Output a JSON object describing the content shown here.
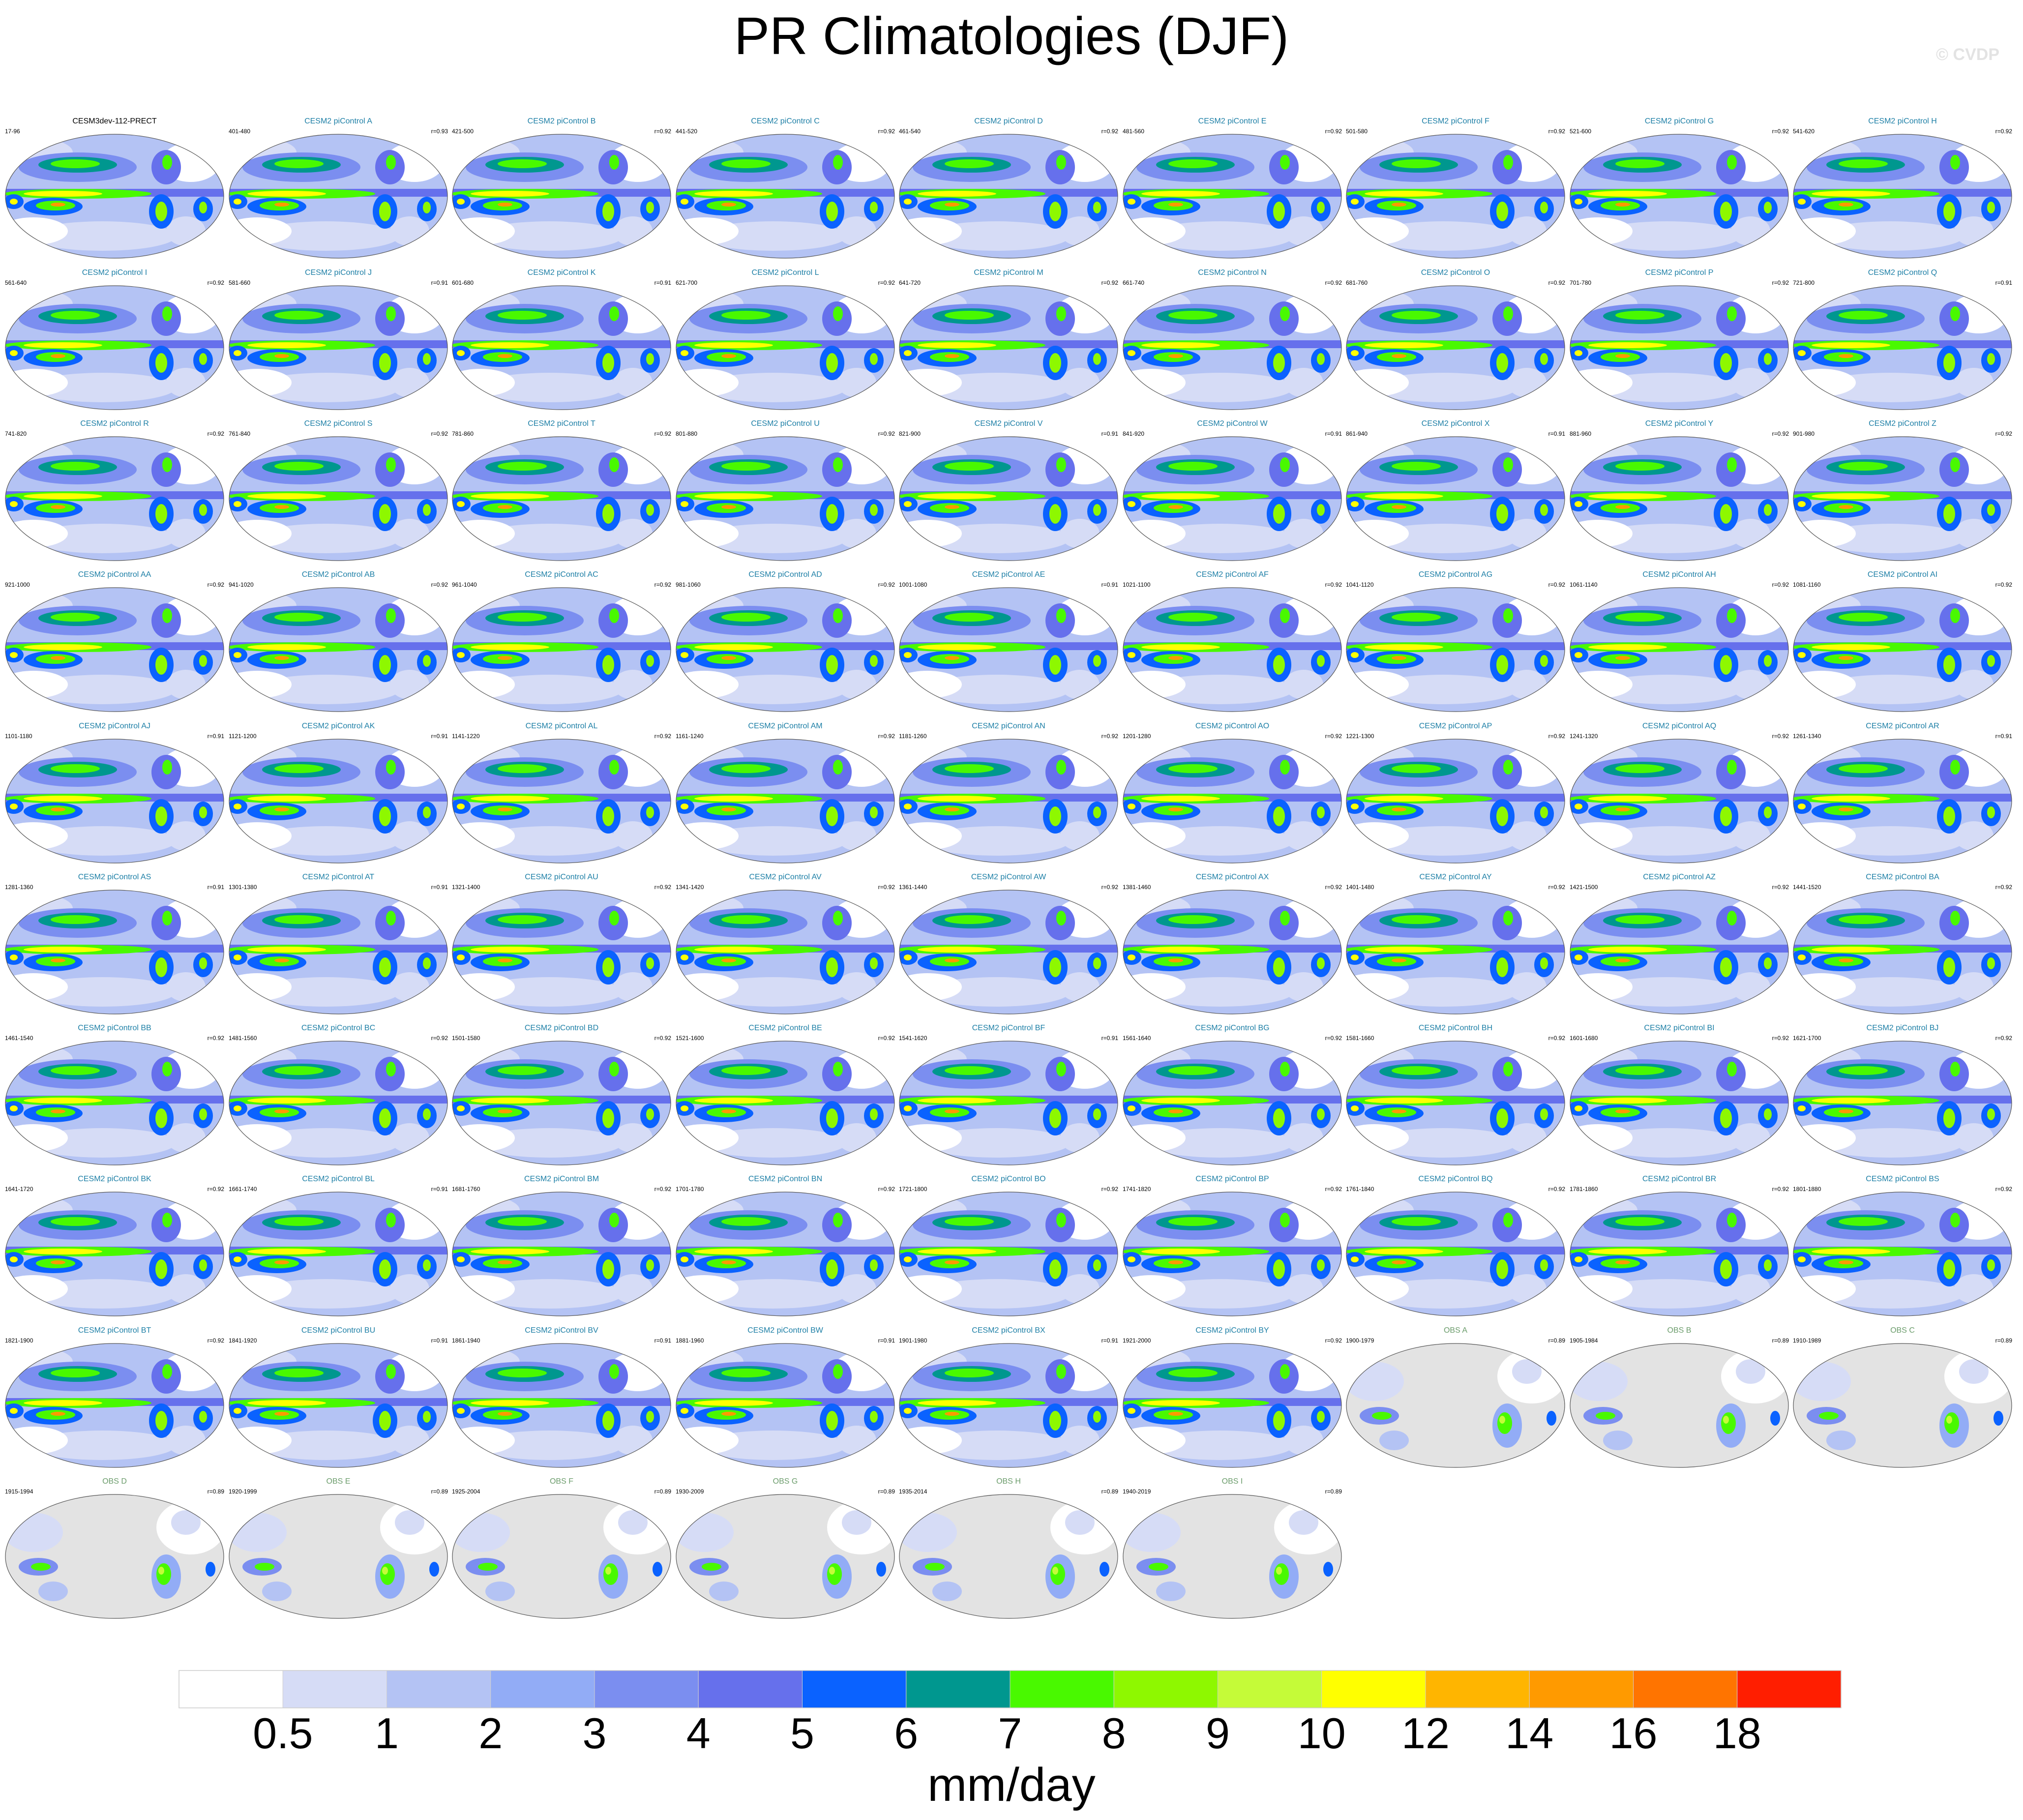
{
  "title": "PR Climatologies (DJF)",
  "copyright": "© CVDP",
  "panels": [
    {
      "name": "CESM3dev-112-PRECT",
      "years": "17-96",
      "corr": "",
      "kind": "base"
    },
    {
      "name": "CESM2 piControl A",
      "years": "401-480",
      "corr": "r=0.93",
      "kind": "model"
    },
    {
      "name": "CESM2 piControl B",
      "years": "421-500",
      "corr": "r=0.92",
      "kind": "model"
    },
    {
      "name": "CESM2 piControl C",
      "years": "441-520",
      "corr": "r=0.92",
      "kind": "model"
    },
    {
      "name": "CESM2 piControl D",
      "years": "461-540",
      "corr": "r=0.92",
      "kind": "model"
    },
    {
      "name": "CESM2 piControl E",
      "years": "481-560",
      "corr": "r=0.92",
      "kind": "model"
    },
    {
      "name": "CESM2 piControl F",
      "years": "501-580",
      "corr": "r=0.92",
      "kind": "model"
    },
    {
      "name": "CESM2 piControl G",
      "years": "521-600",
      "corr": "r=0.92",
      "kind": "model"
    },
    {
      "name": "CESM2 piControl H",
      "years": "541-620",
      "corr": "r=0.92",
      "kind": "model"
    },
    {
      "name": "CESM2 piControl I",
      "years": "561-640",
      "corr": "r=0.92",
      "kind": "model"
    },
    {
      "name": "CESM2 piControl J",
      "years": "581-660",
      "corr": "r=0.91",
      "kind": "model"
    },
    {
      "name": "CESM2 piControl K",
      "years": "601-680",
      "corr": "r=0.91",
      "kind": "model"
    },
    {
      "name": "CESM2 piControl L",
      "years": "621-700",
      "corr": "r=0.92",
      "kind": "model"
    },
    {
      "name": "CESM2 piControl M",
      "years": "641-720",
      "corr": "r=0.92",
      "kind": "model"
    },
    {
      "name": "CESM2 piControl N",
      "years": "661-740",
      "corr": "r=0.92",
      "kind": "model"
    },
    {
      "name": "CESM2 piControl O",
      "years": "681-760",
      "corr": "r=0.92",
      "kind": "model"
    },
    {
      "name": "CESM2 piControl P",
      "years": "701-780",
      "corr": "r=0.92",
      "kind": "model"
    },
    {
      "name": "CESM2 piControl Q",
      "years": "721-800",
      "corr": "r=0.91",
      "kind": "model"
    },
    {
      "name": "CESM2 piControl R",
      "years": "741-820",
      "corr": "r=0.92",
      "kind": "model"
    },
    {
      "name": "CESM2 piControl S",
      "years": "761-840",
      "corr": "r=0.92",
      "kind": "model"
    },
    {
      "name": "CESM2 piControl T",
      "years": "781-860",
      "corr": "r=0.92",
      "kind": "model"
    },
    {
      "name": "CESM2 piControl U",
      "years": "801-880",
      "corr": "r=0.92",
      "kind": "model"
    },
    {
      "name": "CESM2 piControl V",
      "years": "821-900",
      "corr": "r=0.91",
      "kind": "model"
    },
    {
      "name": "CESM2 piControl W",
      "years": "841-920",
      "corr": "r=0.91",
      "kind": "model"
    },
    {
      "name": "CESM2 piControl X",
      "years": "861-940",
      "corr": "r=0.91",
      "kind": "model"
    },
    {
      "name": "CESM2 piControl Y",
      "years": "881-960",
      "corr": "r=0.92",
      "kind": "model"
    },
    {
      "name": "CESM2 piControl Z",
      "years": "901-980",
      "corr": "r=0.92",
      "kind": "model"
    },
    {
      "name": "CESM2 piControl AA",
      "years": "921-1000",
      "corr": "r=0.92",
      "kind": "model"
    },
    {
      "name": "CESM2 piControl AB",
      "years": "941-1020",
      "corr": "r=0.92",
      "kind": "model"
    },
    {
      "name": "CESM2 piControl AC",
      "years": "961-1040",
      "corr": "r=0.92",
      "kind": "model"
    },
    {
      "name": "CESM2 piControl AD",
      "years": "981-1060",
      "corr": "r=0.92",
      "kind": "model"
    },
    {
      "name": "CESM2 piControl AE",
      "years": "1001-1080",
      "corr": "r=0.91",
      "kind": "model"
    },
    {
      "name": "CESM2 piControl AF",
      "years": "1021-1100",
      "corr": "r=0.92",
      "kind": "model"
    },
    {
      "name": "CESM2 piControl AG",
      "years": "1041-1120",
      "corr": "r=0.92",
      "kind": "model"
    },
    {
      "name": "CESM2 piControl AH",
      "years": "1061-1140",
      "corr": "r=0.92",
      "kind": "model"
    },
    {
      "name": "CESM2 piControl AI",
      "years": "1081-1160",
      "corr": "r=0.92",
      "kind": "model"
    },
    {
      "name": "CESM2 piControl AJ",
      "years": "1101-1180",
      "corr": "r=0.91",
      "kind": "model"
    },
    {
      "name": "CESM2 piControl AK",
      "years": "1121-1200",
      "corr": "r=0.91",
      "kind": "model"
    },
    {
      "name": "CESM2 piControl AL",
      "years": "1141-1220",
      "corr": "r=0.92",
      "kind": "model"
    },
    {
      "name": "CESM2 piControl AM",
      "years": "1161-1240",
      "corr": "r=0.92",
      "kind": "model"
    },
    {
      "name": "CESM2 piControl AN",
      "years": "1181-1260",
      "corr": "r=0.92",
      "kind": "model"
    },
    {
      "name": "CESM2 piControl AO",
      "years": "1201-1280",
      "corr": "r=0.92",
      "kind": "model"
    },
    {
      "name": "CESM2 piControl AP",
      "years": "1221-1300",
      "corr": "r=0.92",
      "kind": "model"
    },
    {
      "name": "CESM2 piControl AQ",
      "years": "1241-1320",
      "corr": "r=0.92",
      "kind": "model"
    },
    {
      "name": "CESM2 piControl AR",
      "years": "1261-1340",
      "corr": "r=0.91",
      "kind": "model"
    },
    {
      "name": "CESM2 piControl AS",
      "years": "1281-1360",
      "corr": "r=0.91",
      "kind": "model"
    },
    {
      "name": "CESM2 piControl AT",
      "years": "1301-1380",
      "corr": "r=0.91",
      "kind": "model"
    },
    {
      "name": "CESM2 piControl AU",
      "years": "1321-1400",
      "corr": "r=0.92",
      "kind": "model"
    },
    {
      "name": "CESM2 piControl AV",
      "years": "1341-1420",
      "corr": "r=0.92",
      "kind": "model"
    },
    {
      "name": "CESM2 piControl AW",
      "years": "1361-1440",
      "corr": "r=0.92",
      "kind": "model"
    },
    {
      "name": "CESM2 piControl AX",
      "years": "1381-1460",
      "corr": "r=0.92",
      "kind": "model"
    },
    {
      "name": "CESM2 piControl AY",
      "years": "1401-1480",
      "corr": "r=0.92",
      "kind": "model"
    },
    {
      "name": "CESM2 piControl AZ",
      "years": "1421-1500",
      "corr": "r=0.92",
      "kind": "model"
    },
    {
      "name": "CESM2 piControl BA",
      "years": "1441-1520",
      "corr": "r=0.92",
      "kind": "model"
    },
    {
      "name": "CESM2 piControl BB",
      "years": "1461-1540",
      "corr": "r=0.92",
      "kind": "model"
    },
    {
      "name": "CESM2 piControl BC",
      "years": "1481-1560",
      "corr": "r=0.92",
      "kind": "model"
    },
    {
      "name": "CESM2 piControl BD",
      "years": "1501-1580",
      "corr": "r=0.92",
      "kind": "model"
    },
    {
      "name": "CESM2 piControl BE",
      "years": "1521-1600",
      "corr": "r=0.92",
      "kind": "model"
    },
    {
      "name": "CESM2 piControl BF",
      "years": "1541-1620",
      "corr": "r=0.91",
      "kind": "model"
    },
    {
      "name": "CESM2 piControl BG",
      "years": "1561-1640",
      "corr": "r=0.92",
      "kind": "model"
    },
    {
      "name": "CESM2 piControl BH",
      "years": "1581-1660",
      "corr": "r=0.92",
      "kind": "model"
    },
    {
      "name": "CESM2 piControl BI",
      "years": "1601-1680",
      "corr": "r=0.92",
      "kind": "model"
    },
    {
      "name": "CESM2 piControl BJ",
      "years": "1621-1700",
      "corr": "r=0.92",
      "kind": "model"
    },
    {
      "name": "CESM2 piControl BK",
      "years": "1641-1720",
      "corr": "r=0.92",
      "kind": "model"
    },
    {
      "name": "CESM2 piControl BL",
      "years": "1661-1740",
      "corr": "r=0.91",
      "kind": "model"
    },
    {
      "name": "CESM2 piControl BM",
      "years": "1681-1760",
      "corr": "r=0.92",
      "kind": "model"
    },
    {
      "name": "CESM2 piControl BN",
      "years": "1701-1780",
      "corr": "r=0.92",
      "kind": "model"
    },
    {
      "name": "CESM2 piControl BO",
      "years": "1721-1800",
      "corr": "r=0.92",
      "kind": "model"
    },
    {
      "name": "CESM2 piControl BP",
      "years": "1741-1820",
      "corr": "r=0.92",
      "kind": "model"
    },
    {
      "name": "CESM2 piControl BQ",
      "years": "1761-1840",
      "corr": "r=0.92",
      "kind": "model"
    },
    {
      "name": "CESM2 piControl BR",
      "years": "1781-1860",
      "corr": "r=0.92",
      "kind": "model"
    },
    {
      "name": "CESM2 piControl BS",
      "years": "1801-1880",
      "corr": "r=0.92",
      "kind": "model"
    },
    {
      "name": "CESM2 piControl BT",
      "years": "1821-1900",
      "corr": "r=0.92",
      "kind": "model"
    },
    {
      "name": "CESM2 piControl BU",
      "years": "1841-1920",
      "corr": "r=0.91",
      "kind": "model"
    },
    {
      "name": "CESM2 piControl BV",
      "years": "1861-1940",
      "corr": "r=0.91",
      "kind": "model"
    },
    {
      "name": "CESM2 piControl BW",
      "years": "1881-1960",
      "corr": "r=0.91",
      "kind": "model"
    },
    {
      "name": "CESM2 piControl BX",
      "years": "1901-1980",
      "corr": "r=0.91",
      "kind": "model"
    },
    {
      "name": "CESM2 piControl BY",
      "years": "1921-2000",
      "corr": "r=0.92",
      "kind": "model"
    },
    {
      "name": "OBS A",
      "years": "1900-1979",
      "corr": "r=0.89",
      "kind": "obs"
    },
    {
      "name": "OBS B",
      "years": "1905-1984",
      "corr": "r=0.89",
      "kind": "obs"
    },
    {
      "name": "OBS C",
      "years": "1910-1989",
      "corr": "r=0.89",
      "kind": "obs"
    },
    {
      "name": "OBS D",
      "years": "1915-1994",
      "corr": "r=0.89",
      "kind": "obs"
    },
    {
      "name": "OBS E",
      "years": "1920-1999",
      "corr": "r=0.89",
      "kind": "obs"
    },
    {
      "name": "OBS F",
      "years": "1925-2004",
      "corr": "r=0.89",
      "kind": "obs"
    },
    {
      "name": "OBS G",
      "years": "1930-2009",
      "corr": "r=0.89",
      "kind": "obs"
    },
    {
      "name": "OBS H",
      "years": "1935-2014",
      "corr": "r=0.89",
      "kind": "obs"
    },
    {
      "name": "OBS I",
      "years": "1940-2019",
      "corr": "r=0.89",
      "kind": "obs"
    }
  ],
  "chart_data": {
    "type": "heatmap",
    "title": "PR Climatologies (DJF)",
    "colorbar": {
      "units": "mm/day",
      "levels": [
        "0.5",
        "1",
        "2",
        "3",
        "4",
        "5",
        "6",
        "7",
        "8",
        "9",
        "10",
        "12",
        "14",
        "16",
        "18"
      ],
      "colors": [
        "#ffffff",
        "#d6dcf6",
        "#b4c3f4",
        "#92acf6",
        "#7b8ef0",
        "#6670ec",
        "#0a62ff",
        "#00978f",
        "#49f900",
        "#8ef800",
        "#c5fb38",
        "#ffff00",
        "#ffb500",
        "#ff9a00",
        "#ff7400",
        "#ff1e00"
      ]
    },
    "missing_color": "#e3e3e3"
  }
}
